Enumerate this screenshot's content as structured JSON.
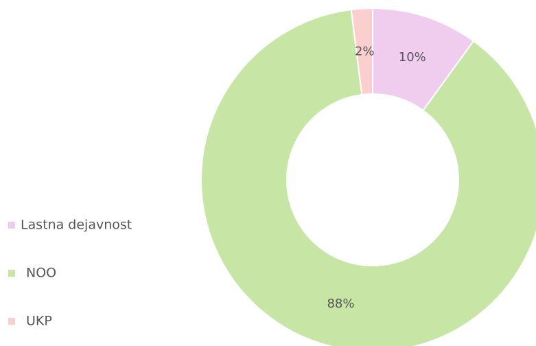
{
  "chart_data": {
    "type": "donut",
    "categories": [
      "Lastna dejavnost",
      "NOO",
      "UKP"
    ],
    "values": [
      10,
      88,
      2
    ],
    "value_labels": [
      "10%",
      "88%",
      "2%"
    ],
    "colors": [
      "#f0cdee",
      "#c7e5a5",
      "#fccfcf"
    ],
    "legend": "left"
  }
}
